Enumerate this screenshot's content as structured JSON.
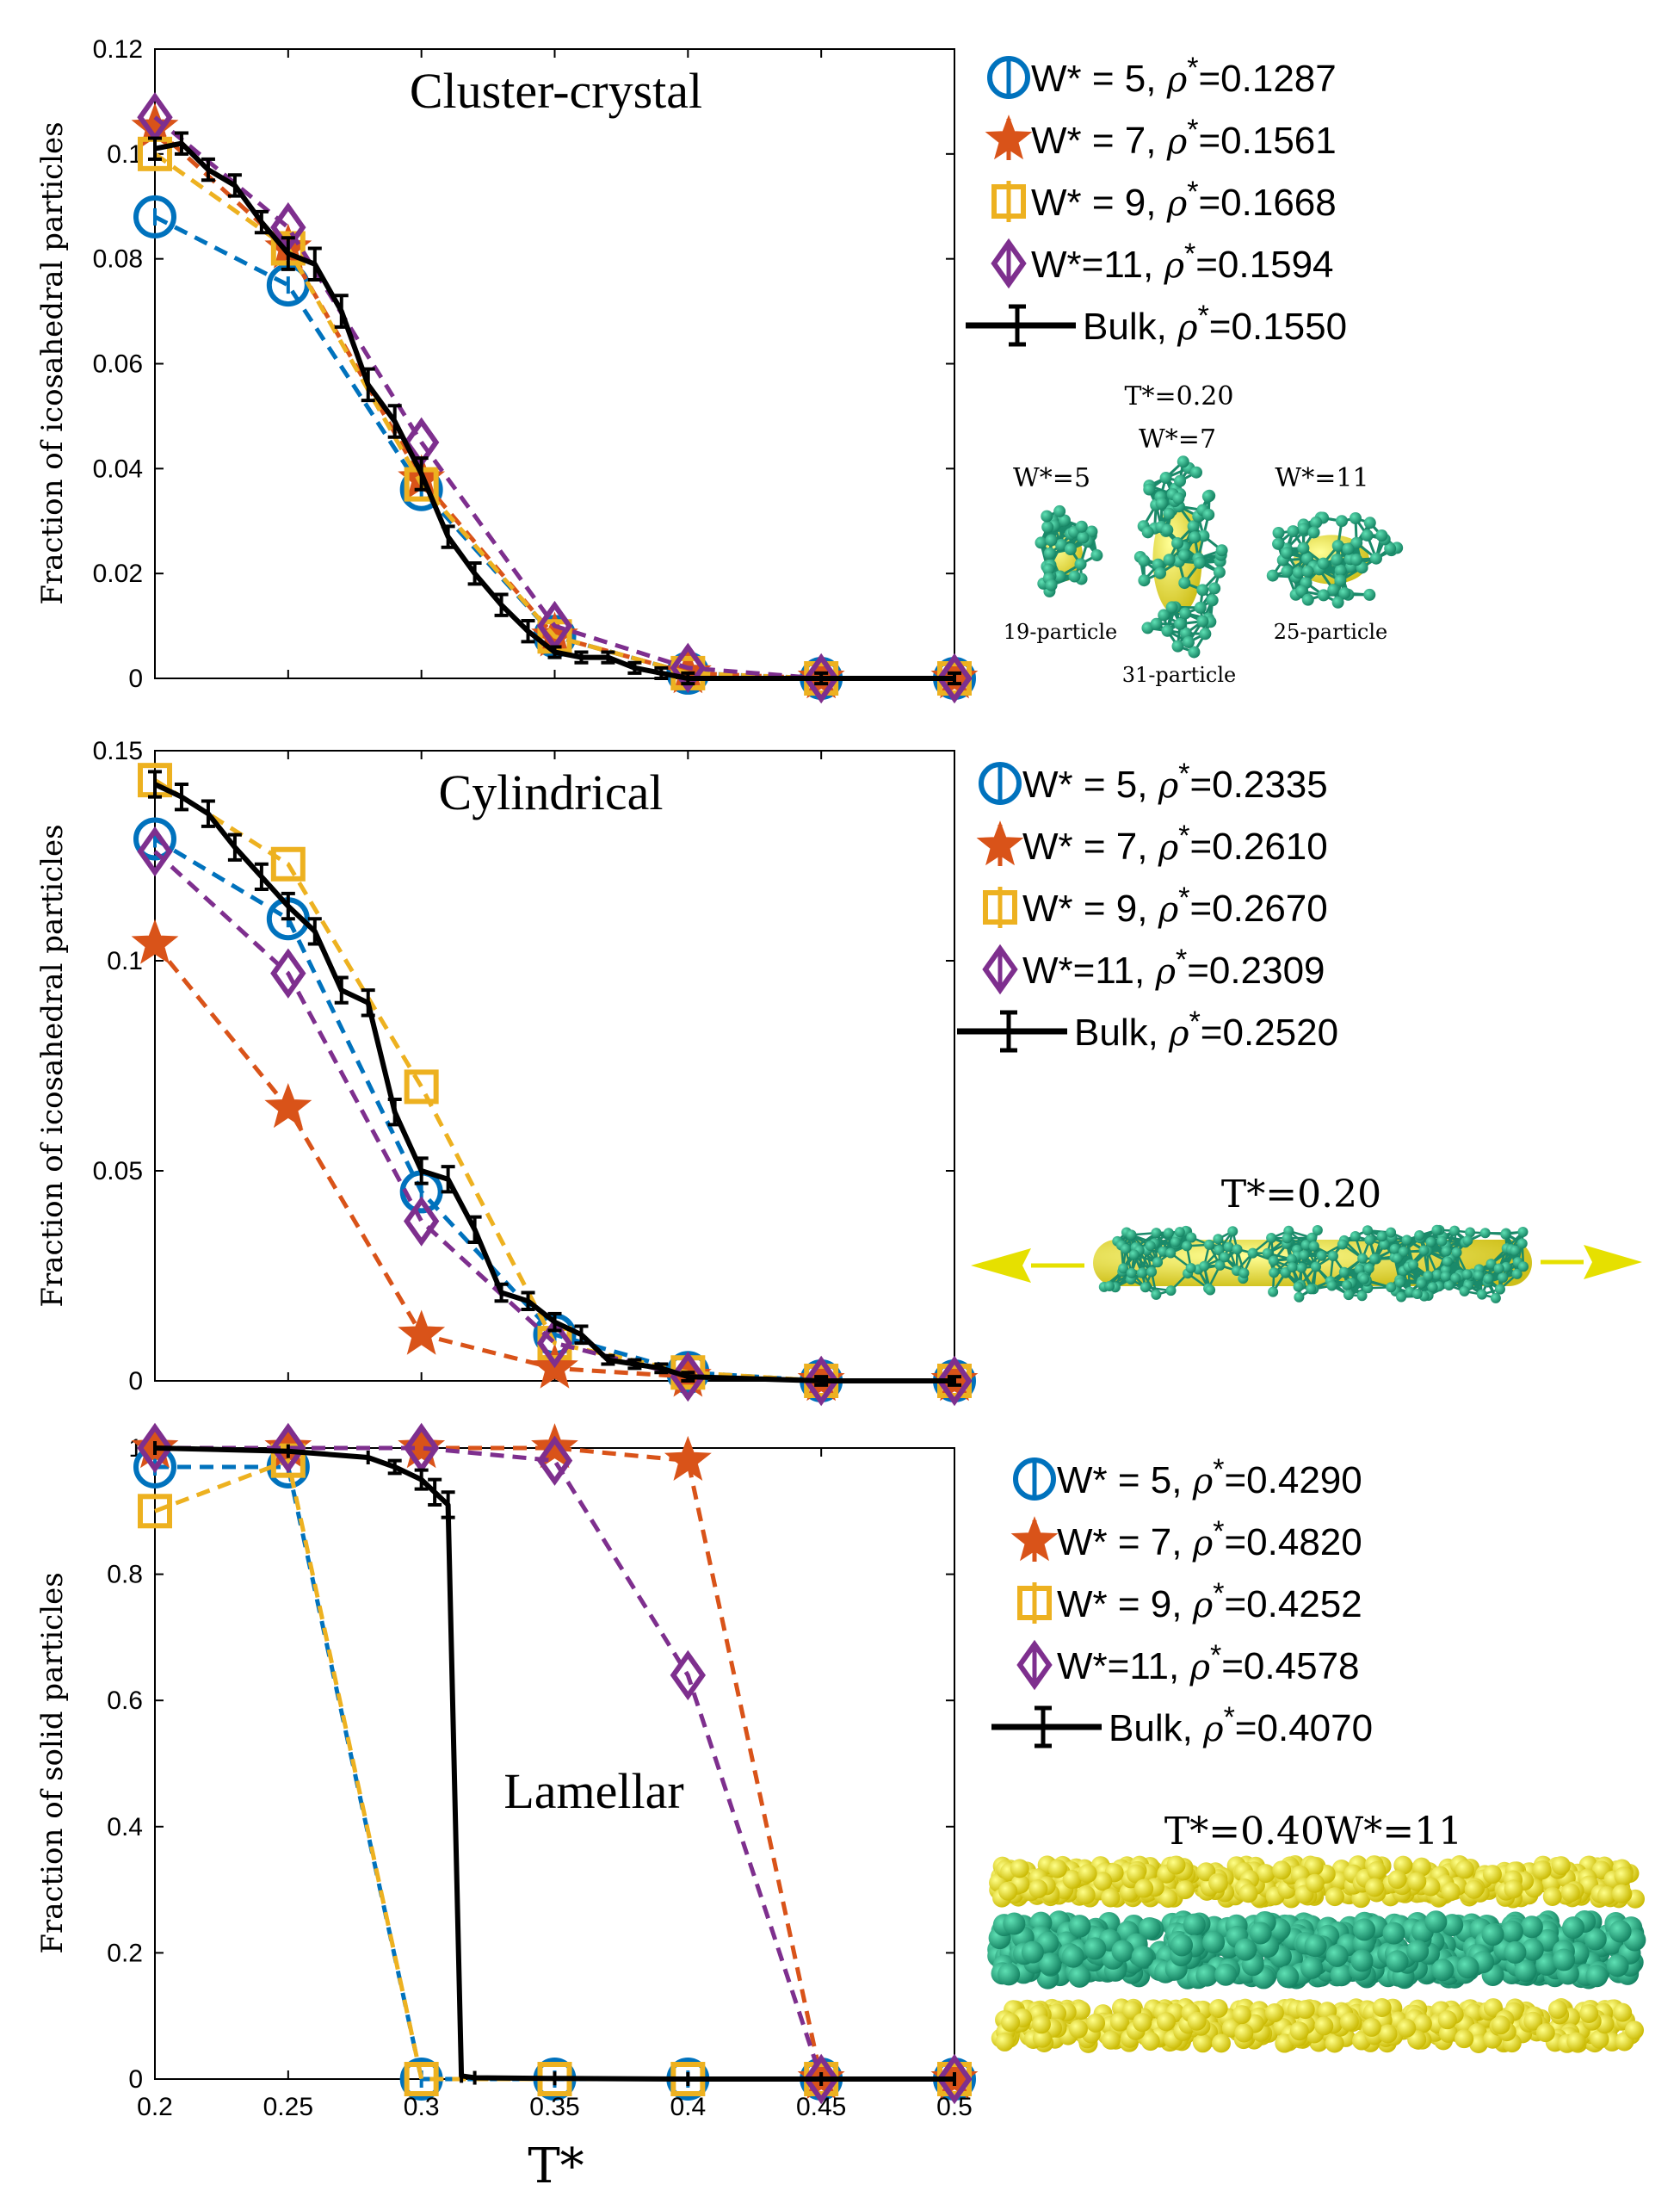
{
  "x_axis": {
    "label": "T*",
    "ticks": [
      "0.2",
      "0.25",
      "0.3",
      "0.35",
      "0.4",
      "0.45",
      "0.5"
    ]
  },
  "chart_data": [
    {
      "type": "line",
      "title": "Cluster-crystal",
      "ylabel": "Fraction of icosahedral particles",
      "xlim": [
        0.2,
        0.5
      ],
      "ylim": [
        0,
        0.12
      ],
      "yticks": [
        "0",
        "0.02",
        "0.04",
        "0.06",
        "0.08",
        "0.1",
        "0.12"
      ],
      "ytick_values": [
        0,
        0.02,
        0.04,
        0.06,
        0.08,
        0.1,
        0.12
      ],
      "series": [
        {
          "name": "W* = 5",
          "rho": "=0.1287",
          "color": "#0072BD",
          "marker": "circle",
          "x": [
            0.2,
            0.25,
            0.3,
            0.35,
            0.4,
            0.45,
            0.5
          ],
          "values": [
            0.088,
            0.075,
            0.036,
            0.008,
            0.001,
            0.0,
            0.0
          ]
        },
        {
          "name": "W* = 7",
          "rho": "=0.1561",
          "color": "#D95319",
          "marker": "star",
          "x": [
            0.2,
            0.25,
            0.3,
            0.35,
            0.4,
            0.45,
            0.5
          ],
          "values": [
            0.105,
            0.082,
            0.038,
            0.008,
            0.001,
            0.0,
            0.0
          ]
        },
        {
          "name": "W* = 9",
          "rho": "=0.1668",
          "color": "#EDB120",
          "marker": "square",
          "x": [
            0.2,
            0.25,
            0.3,
            0.35,
            0.4,
            0.45,
            0.5
          ],
          "values": [
            0.1,
            0.082,
            0.037,
            0.008,
            0.001,
            0.0,
            0.0
          ]
        },
        {
          "name": "W*=11",
          "rho": "=0.1594",
          "color": "#7E2F8E",
          "marker": "diamond",
          "x": [
            0.2,
            0.25,
            0.3,
            0.35,
            0.4,
            0.45,
            0.5
          ],
          "values": [
            0.107,
            0.086,
            0.045,
            0.01,
            0.002,
            0.0,
            0.0
          ]
        },
        {
          "name": "Bulk",
          "rho": "=0.1550",
          "color": "#000000",
          "marker": "errorbar",
          "x": [
            0.2,
            0.21,
            0.22,
            0.23,
            0.24,
            0.25,
            0.26,
            0.27,
            0.28,
            0.29,
            0.3,
            0.31,
            0.32,
            0.33,
            0.34,
            0.35,
            0.36,
            0.37,
            0.38,
            0.39,
            0.4,
            0.45,
            0.5
          ],
          "values": [
            0.101,
            0.102,
            0.097,
            0.094,
            0.087,
            0.081,
            0.079,
            0.07,
            0.056,
            0.049,
            0.039,
            0.027,
            0.02,
            0.014,
            0.009,
            0.005,
            0.004,
            0.004,
            0.002,
            0.001,
            0.0,
            0.0,
            0.0
          ],
          "err": [
            0.002,
            0.002,
            0.002,
            0.002,
            0.002,
            0.003,
            0.003,
            0.003,
            0.003,
            0.003,
            0.003,
            0.002,
            0.002,
            0.002,
            0.002,
            0.001,
            0.001,
            0.001,
            0.001,
            0.001,
            0.001,
            0.001,
            0.001
          ]
        }
      ]
    },
    {
      "type": "line",
      "title": "Cylindrical",
      "ylabel": "Fraction of icosahedral particles",
      "xlim": [
        0.2,
        0.5
      ],
      "ylim": [
        0,
        0.15
      ],
      "yticks": [
        "0",
        "0.05",
        "0.1",
        "0.15"
      ],
      "ytick_values": [
        0,
        0.05,
        0.1,
        0.15
      ],
      "series": [
        {
          "name": "W* = 5",
          "rho": "=0.2335",
          "color": "#0072BD",
          "marker": "circle",
          "x": [
            0.2,
            0.25,
            0.3,
            0.35,
            0.4,
            0.45,
            0.5
          ],
          "values": [
            0.129,
            0.11,
            0.045,
            0.011,
            0.002,
            0.0,
            0.0
          ]
        },
        {
          "name": "W* = 7",
          "rho": "=0.2610",
          "color": "#D95319",
          "marker": "star",
          "x": [
            0.2,
            0.25,
            0.3,
            0.35,
            0.4,
            0.45,
            0.5
          ],
          "values": [
            0.104,
            0.065,
            0.011,
            0.003,
            0.001,
            0.0,
            0.0
          ]
        },
        {
          "name": "W* = 9",
          "rho": "=0.2670",
          "color": "#EDB120",
          "marker": "square",
          "x": [
            0.2,
            0.25,
            0.3,
            0.35,
            0.4,
            0.45,
            0.5
          ],
          "values": [
            0.143,
            0.123,
            0.07,
            0.009,
            0.002,
            0.0,
            0.0
          ]
        },
        {
          "name": "W*=11",
          "rho": "=0.2309",
          "color": "#7E2F8E",
          "marker": "diamond",
          "x": [
            0.2,
            0.25,
            0.3,
            0.35,
            0.4,
            0.45,
            0.5
          ],
          "values": [
            0.126,
            0.097,
            0.038,
            0.009,
            0.001,
            0.0,
            0.0
          ]
        },
        {
          "name": "Bulk",
          "rho": "=0.2520",
          "color": "#000000",
          "marker": "errorbar",
          "x": [
            0.2,
            0.21,
            0.22,
            0.23,
            0.24,
            0.25,
            0.26,
            0.27,
            0.28,
            0.29,
            0.3,
            0.31,
            0.32,
            0.33,
            0.34,
            0.35,
            0.36,
            0.37,
            0.38,
            0.39,
            0.4,
            0.45,
            0.5
          ],
          "values": [
            0.142,
            0.139,
            0.135,
            0.127,
            0.12,
            0.113,
            0.107,
            0.093,
            0.09,
            0.064,
            0.05,
            0.048,
            0.036,
            0.021,
            0.019,
            0.014,
            0.011,
            0.005,
            0.004,
            0.003,
            0.001,
            0.0,
            0.0
          ],
          "err": [
            0.003,
            0.003,
            0.003,
            0.003,
            0.003,
            0.003,
            0.003,
            0.003,
            0.003,
            0.003,
            0.003,
            0.003,
            0.003,
            0.002,
            0.002,
            0.002,
            0.002,
            0.001,
            0.001,
            0.001,
            0.001,
            0.001,
            0.001
          ]
        }
      ]
    },
    {
      "type": "line",
      "title": "Lamellar",
      "ylabel": "Fraction of  solid particles",
      "xlim": [
        0.2,
        0.5
      ],
      "ylim": [
        0,
        1
      ],
      "yticks": [
        "0",
        "0.2",
        "0.4",
        "0.6",
        "0.8",
        "1"
      ],
      "ytick_values": [
        0,
        0.2,
        0.4,
        0.6,
        0.8,
        1
      ],
      "series": [
        {
          "name": "W* = 5",
          "rho": "=0.4290",
          "color": "#0072BD",
          "marker": "circle",
          "x": [
            0.2,
            0.25,
            0.3,
            0.35,
            0.4,
            0.45,
            0.5
          ],
          "values": [
            0.97,
            0.97,
            0.0,
            0.0,
            0.0,
            0.0,
            0.0
          ]
        },
        {
          "name": "W* = 7",
          "rho": "=0.4820",
          "color": "#D95319",
          "marker": "star",
          "x": [
            0.2,
            0.25,
            0.3,
            0.35,
            0.4,
            0.45,
            0.5
          ],
          "values": [
            1.0,
            1.0,
            1.0,
            1.0,
            0.98,
            0.0,
            0.0
          ]
        },
        {
          "name": "W* = 9",
          "rho": "=0.4252",
          "color": "#EDB120",
          "marker": "square",
          "x": [
            0.2,
            0.25,
            0.3,
            0.35,
            0.4,
            0.45,
            0.5
          ],
          "values": [
            0.9,
            0.98,
            0.0,
            0.0,
            0.0,
            0.0,
            0.0
          ]
        },
        {
          "name": "W*=11",
          "rho": "=0.4578",
          "color": "#7E2F8E",
          "marker": "diamond",
          "x": [
            0.2,
            0.25,
            0.3,
            0.35,
            0.4,
            0.45,
            0.5
          ],
          "values": [
            1.0,
            1.0,
            1.0,
            0.98,
            0.64,
            0.0,
            0.0
          ]
        },
        {
          "name": "Bulk",
          "rho": "=0.4070",
          "color": "#000000",
          "marker": "errorbar",
          "x": [
            0.2,
            0.25,
            0.28,
            0.29,
            0.3,
            0.305,
            0.31,
            0.315,
            0.32,
            0.35,
            0.4,
            0.45,
            0.5
          ],
          "values": [
            1.0,
            0.995,
            0.985,
            0.97,
            0.95,
            0.93,
            0.91,
            0.005,
            0.002,
            0.001,
            0.0,
            0.0,
            0.0
          ],
          "err": [
            0.0,
            0.0,
            0.0,
            0.01,
            0.015,
            0.02,
            0.02,
            0.0,
            0.0,
            0.0,
            0.0,
            0.0,
            0.0
          ]
        }
      ]
    }
  ],
  "snapshots": {
    "top": {
      "temp": "T*=0.20",
      "w7": "W*=7",
      "w5": "W*=5",
      "w11": "W*=11",
      "p19": "19-particle",
      "p31": "31-particle",
      "p25": "25-particle"
    },
    "middle": {
      "temp": "T*=0.20"
    },
    "bottom": {
      "temp": "T*=0.40W*=11"
    }
  },
  "colors": {
    "green": "#1f9a78",
    "green_light": "#3bc498",
    "yellow": "#e6e000",
    "yellow_light": "#fbf84a"
  }
}
